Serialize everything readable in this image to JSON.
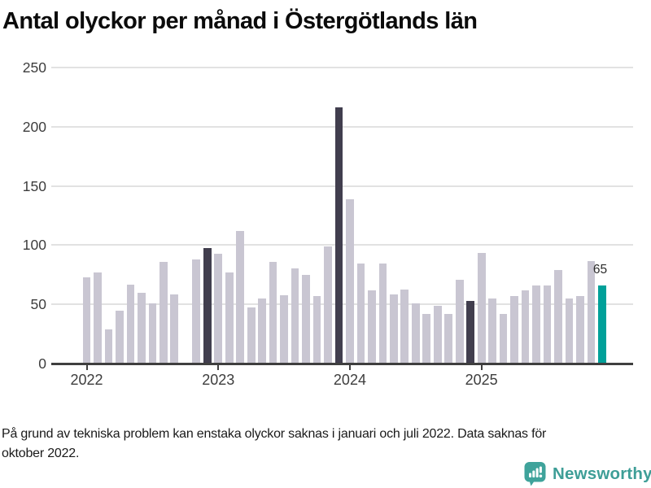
{
  "title": "Antal olyckor per månad i Östergötlands län",
  "footnote": {
    "lines": [
      "På grund av tekniska problem kan enstaka olyckor saknas i januari och juli 2022. Data saknas för",
      "oktober 2022."
    ]
  },
  "logo": {
    "text": "Newsworthy",
    "icon": "newsworthy-speech-bubble-bar-chart-icon"
  },
  "colors": {
    "bar_default": "#c9c6d2",
    "bar_highlight_dark": "#413e4e",
    "bar_highlight_current": "#00a099",
    "gridline": "#e2e2e2",
    "axis": "#3f3f3f",
    "tick_text": "#3d3d3d",
    "logo_teal": "#3fa39b"
  },
  "chart_data": {
    "type": "bar",
    "title": "Antal olyckor per månad i Östergötlands län",
    "xlabel": "",
    "ylabel": "",
    "ylim": [
      0,
      250
    ],
    "yticks": [
      0,
      50,
      100,
      150,
      200,
      250
    ],
    "grid": true,
    "legend": false,
    "x": [
      "2022-01",
      "2022-02",
      "2022-03",
      "2022-04",
      "2022-05",
      "2022-06",
      "2022-07",
      "2022-08",
      "2022-09",
      "2022-10",
      "2022-11",
      "2022-12",
      "2023-01",
      "2023-02",
      "2023-03",
      "2023-04",
      "2023-05",
      "2023-06",
      "2023-07",
      "2023-08",
      "2023-09",
      "2023-10",
      "2023-11",
      "2023-12",
      "2024-01",
      "2024-02",
      "2024-03",
      "2024-04",
      "2024-05",
      "2024-06",
      "2024-07",
      "2024-08",
      "2024-09",
      "2024-10",
      "2024-11",
      "2024-12",
      "2025-01",
      "2025-02",
      "2025-03",
      "2025-04",
      "2025-05",
      "2025-06",
      "2025-07",
      "2025-08",
      "2025-09",
      "2025-10",
      "2025-11",
      "2025-12"
    ],
    "values": [
      72,
      76,
      28,
      44,
      66,
      59,
      50,
      85,
      58,
      null,
      87,
      97,
      92,
      76,
      111,
      47,
      54,
      85,
      57,
      80,
      74,
      56,
      98,
      216,
      138,
      84,
      61,
      84,
      58,
      62,
      50,
      41,
      48,
      41,
      70,
      52,
      93,
      54,
      41,
      56,
      61,
      65,
      65,
      78,
      54,
      56,
      86,
      65
    ],
    "missing_months": [
      "2022-10"
    ],
    "highlight_dark_months": [
      "2022-12",
      "2023-12",
      "2024-12"
    ],
    "highlight_current_month": "2025-12",
    "annotation": {
      "month": "2025-12",
      "label": "65"
    },
    "xticks": [
      {
        "label": "2022",
        "month": "2022-01"
      },
      {
        "label": "2023",
        "month": "2023-01"
      },
      {
        "label": "2024",
        "month": "2024-01"
      },
      {
        "label": "2025",
        "month": "2025-01"
      }
    ]
  }
}
